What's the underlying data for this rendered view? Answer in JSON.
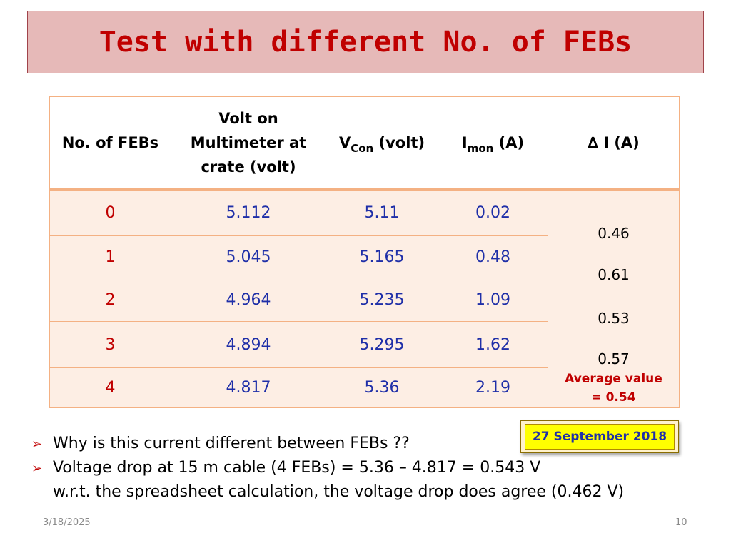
{
  "title": "Test with different No. of FEBs",
  "table": {
    "headers": {
      "febs": "No. of FEBs",
      "multimeter_l1": "Volt on",
      "multimeter_l2": "Multimeter at",
      "multimeter_l3": "crate (volt)",
      "vcon_main": "V",
      "vcon_sub": "Con",
      "vcon_unit": " (volt)",
      "imon_main": "I",
      "imon_sub": "mon",
      "imon_unit": " (A)",
      "delta": "∆ I (A)"
    },
    "rows": [
      {
        "febs": "0",
        "multimeter": "5.112",
        "vcon": "5.11",
        "imon": "0.02"
      },
      {
        "febs": "1",
        "multimeter": "5.045",
        "vcon": "5.165",
        "imon": "0.48"
      },
      {
        "febs": "2",
        "multimeter": "4.964",
        "vcon": "5.235",
        "imon": "1.09"
      },
      {
        "febs": "3",
        "multimeter": "4.894",
        "vcon": "5.295",
        "imon": "1.62"
      },
      {
        "febs": "4",
        "multimeter": "4.817",
        "vcon": "5.36",
        "imon": "2.19"
      }
    ],
    "delta_values": [
      "0.46",
      "0.61",
      "0.53",
      "0.57"
    ],
    "average_line1": "Average value",
    "average_line2": "= 0.54"
  },
  "date_badge": "27 September 2018",
  "bullets": [
    "Why is this current different between FEBs ??",
    "Voltage drop at 15 m cable (4 FEBs) = 5.36 – 4.817 = 0.543 V"
  ],
  "bullet_continuation": "w.r.t. the spreadsheet calculation, the voltage drop does agree (0.462 V)",
  "footer": {
    "date": "3/18/2025",
    "page": "10"
  },
  "colors": {
    "title_bg": "#e6b9b8",
    "title_text": "#c00000",
    "value_blue": "#1f2fa8",
    "row_bg": "#fdeee4",
    "badge_yellow": "#ffff00"
  }
}
